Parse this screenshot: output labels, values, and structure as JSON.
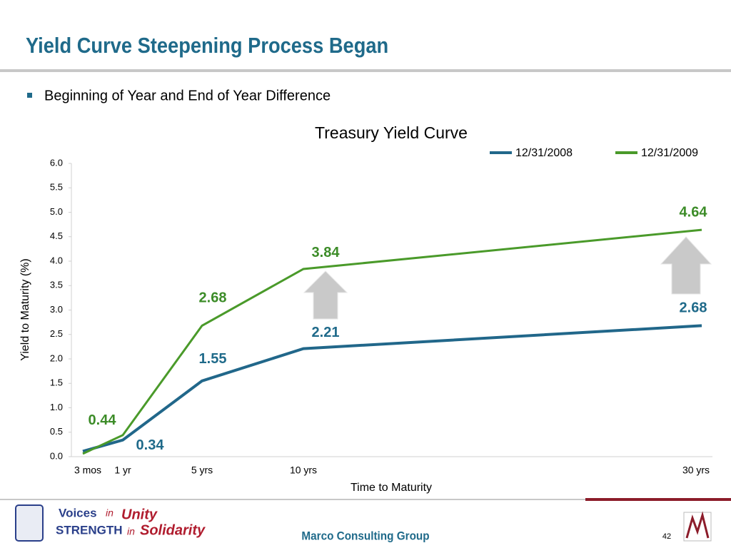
{
  "slide": {
    "title": "Yield Curve Steepening Process Began",
    "bullet": "Beginning of Year and End of Year Difference",
    "footer": "Marco Consulting Group",
    "page_number": "42",
    "logo_text": [
      "Voices",
      "in",
      "Unity",
      "STRENGTH",
      "in",
      "Solidarity"
    ]
  },
  "chart_data": {
    "type": "line",
    "title": "Treasury Yield Curve",
    "x_label": "Time to Maturity",
    "y_label": "Yield to Maturity (%)",
    "categories": [
      "3 mos",
      "1 yr",
      "5 yrs",
      "10 yrs",
      "30 yrs"
    ],
    "series": [
      {
        "name": "12/31/2008",
        "color": "#21678a",
        "label_color": "#1f6a8a",
        "values": [
          0.11,
          0.34,
          1.55,
          2.21,
          2.68
        ]
      },
      {
        "name": "12/31/2009",
        "color": "#4a9a2a",
        "label_color": "#3c8c28",
        "values": [
          0.06,
          0.44,
          2.68,
          3.84,
          4.64
        ]
      }
    ],
    "ylim": [
      0,
      6
    ],
    "yticks": [
      {
        "value": 0,
        "label": "0.0"
      },
      {
        "value": 0.5,
        "label": "0.5"
      },
      {
        "value": 1,
        "label": "1.0"
      },
      {
        "value": 1.5,
        "label": "1.5"
      },
      {
        "value": 2,
        "label": "2.0"
      },
      {
        "value": 2.5,
        "label": "2.5"
      },
      {
        "value": 3,
        "label": "3.0"
      },
      {
        "value": 3.5,
        "label": "3.5"
      },
      {
        "value": 4,
        "label": "4.0"
      },
      {
        "value": 4.5,
        "label": "4.5"
      },
      {
        "value": 5,
        "label": "5.0"
      },
      {
        "value": 5.5,
        "label": "5.5"
      },
      {
        "value": 6,
        "label": "6.0"
      }
    ],
    "legend": "top-right"
  }
}
